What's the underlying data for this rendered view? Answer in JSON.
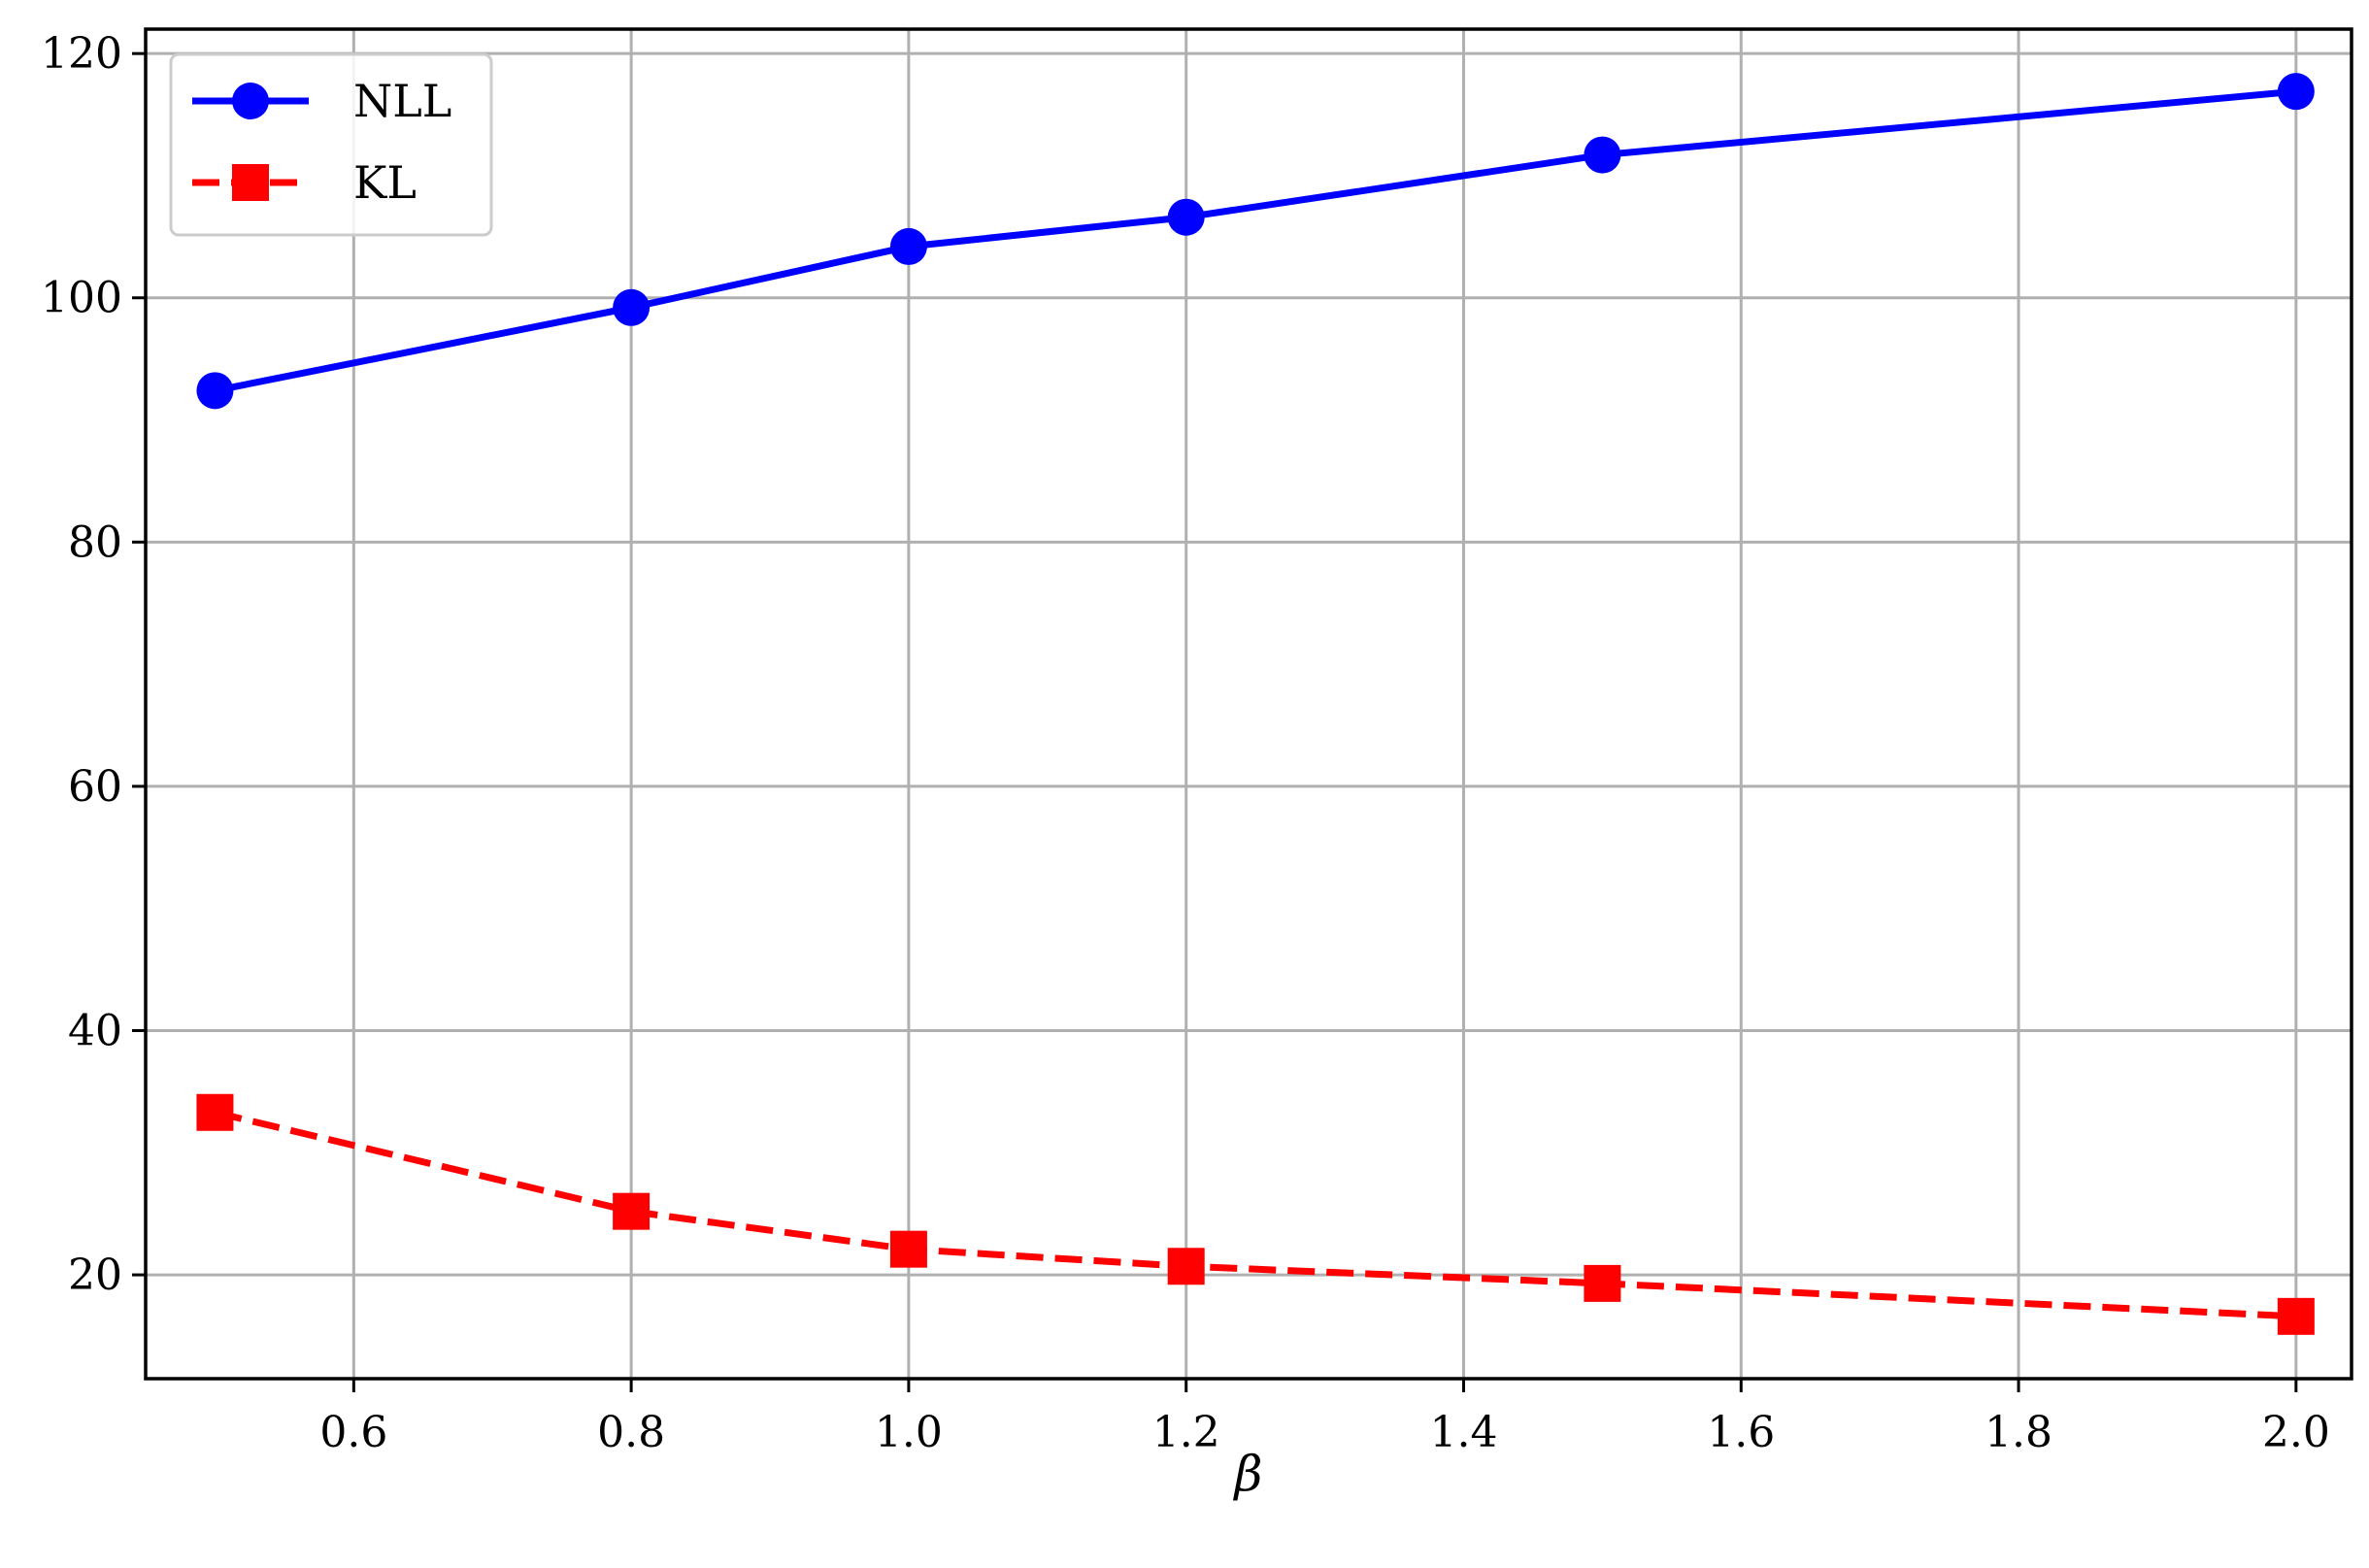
{
  "chart_data": {
    "type": "line",
    "xlabel": "β",
    "ylabel": "",
    "xlim": [
      0.45,
      2.04
    ],
    "ylim": [
      11.5,
      122
    ],
    "xticks": [
      0.6,
      0.8,
      1.0,
      1.2,
      1.4,
      1.6,
      1.8,
      2.0
    ],
    "xtick_labels": [
      "0.6",
      "0.8",
      "1.0",
      "1.2",
      "1.4",
      "1.6",
      "1.8",
      "2.0"
    ],
    "yticks": [
      20,
      40,
      60,
      80,
      100,
      120
    ],
    "ytick_labels": [
      "20",
      "40",
      "60",
      "80",
      "100",
      "120"
    ],
    "grid": true,
    "legend_position": "top-left",
    "x": [
      0.5,
      0.8,
      1.0,
      1.2,
      1.5,
      2.0
    ],
    "series": [
      {
        "name": "NLL",
        "values": [
          92.4,
          99.2,
          104.2,
          106.6,
          111.7,
          116.9
        ],
        "color": "#0000ff",
        "marker": "circle",
        "linestyle": "solid"
      },
      {
        "name": "KL",
        "values": [
          33.3,
          25.2,
          22.1,
          20.7,
          19.3,
          16.6
        ],
        "color": "#ff0000",
        "marker": "square",
        "linestyle": "dashed"
      }
    ]
  }
}
